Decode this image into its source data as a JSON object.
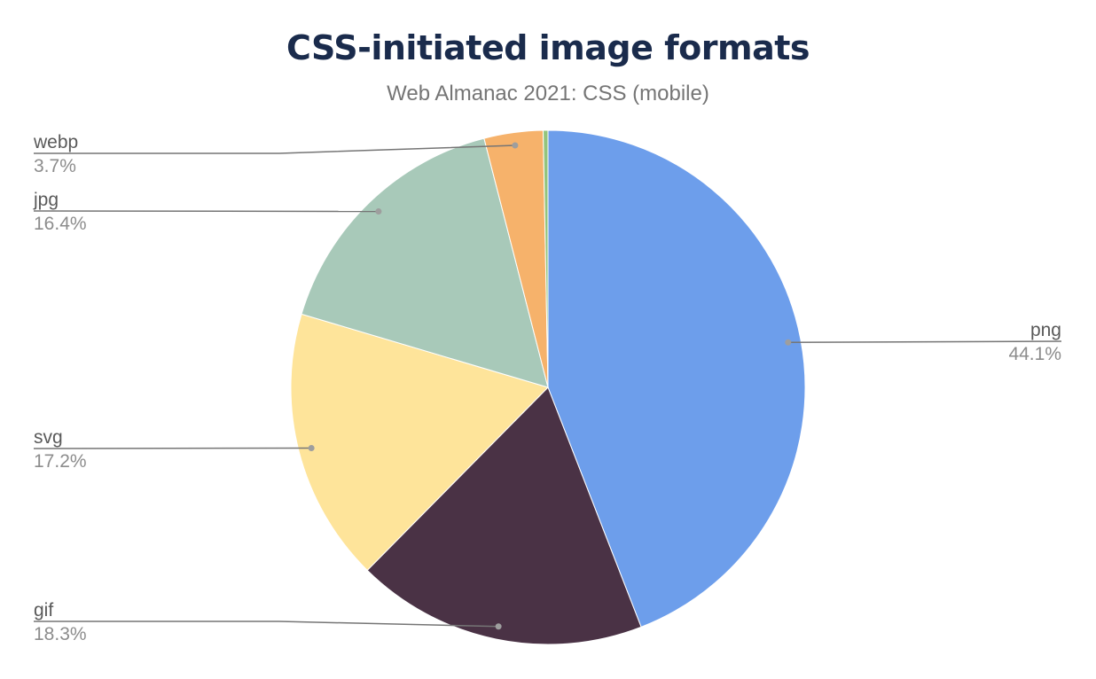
{
  "chart_data": {
    "type": "pie",
    "title": "CSS-initiated image formats",
    "subtitle": "Web Almanac 2021: CSS (mobile)",
    "slices": [
      {
        "label": "png",
        "value": 44.1,
        "display": "44.1%",
        "color": "#6d9eeb"
      },
      {
        "label": "gif",
        "value": 18.3,
        "display": "18.3%",
        "color": "#4a3245"
      },
      {
        "label": "svg",
        "value": 17.2,
        "display": "17.2%",
        "color": "#fee49a"
      },
      {
        "label": "jpg",
        "value": 16.4,
        "display": "16.4%",
        "color": "#a8c9b9"
      },
      {
        "label": "webp",
        "value": 3.7,
        "display": "3.7%",
        "color": "#f6b26b"
      },
      {
        "label": "",
        "value": 0.3,
        "display": "",
        "color": "#93c47d"
      }
    ],
    "start_angle": "top, clockwise",
    "legend": "none (leader-line labels)"
  }
}
